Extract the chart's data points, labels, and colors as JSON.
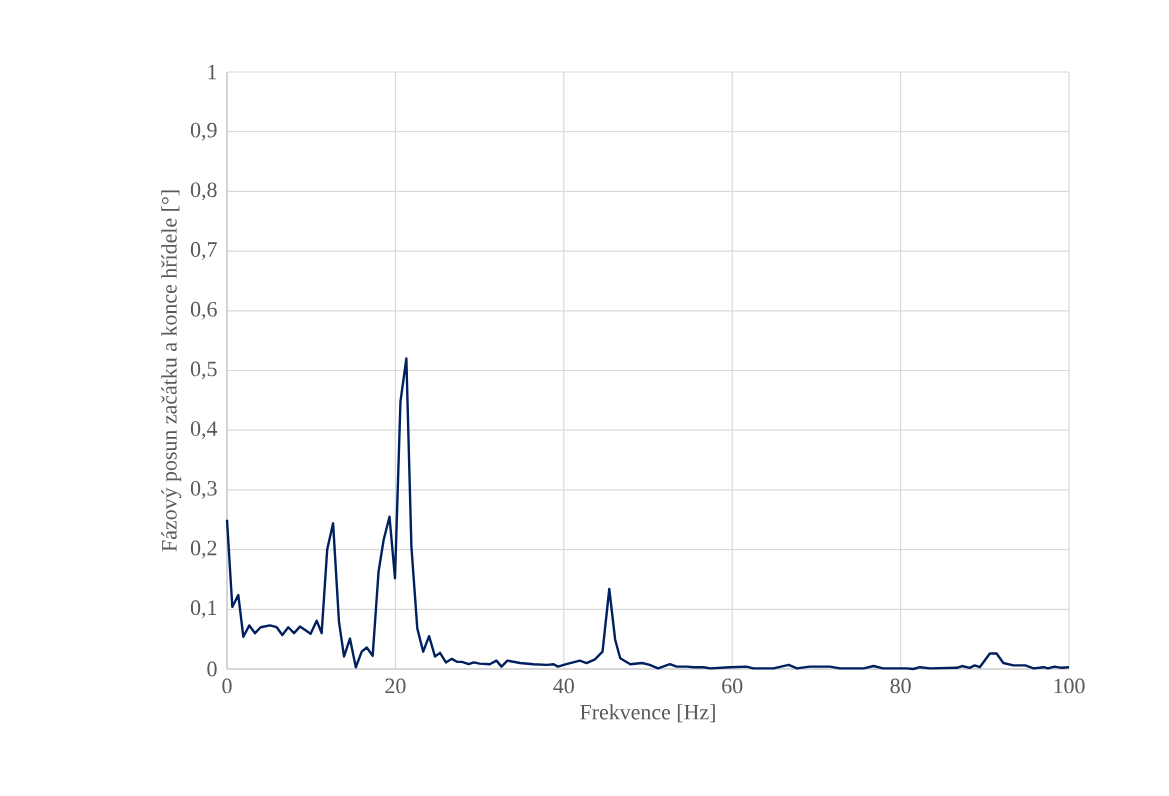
{
  "chart_data": {
    "type": "line",
    "xlabel": "Frekvence [Hz]",
    "ylabel": "Fázový posun začátku a konce hřídele [°]",
    "xlim": [
      0,
      100
    ],
    "ylim": [
      0,
      1
    ],
    "xticks": [
      0,
      20,
      40,
      60,
      80,
      100
    ],
    "yticks": [
      0,
      {
        "value": 0.1,
        "label": "0,1"
      },
      {
        "value": 0.2,
        "label": "0,2"
      },
      {
        "value": 0.3,
        "label": "0,3"
      },
      {
        "value": 0.4,
        "label": "0,4"
      },
      {
        "value": 0.5,
        "label": "0,5"
      },
      {
        "value": 0.6,
        "label": "0,6"
      },
      {
        "value": 0.7,
        "label": "0,7"
      },
      {
        "value": 0.8,
        "label": "0,8"
      },
      {
        "value": 0.9,
        "label": "0,9"
      },
      1
    ],
    "grid": true,
    "marker": "none",
    "line_style": "solid",
    "x": [
      0,
      0.63,
      1.34,
      1.94,
      2.65,
      3.33,
      4.0,
      5.1,
      5.9,
      6.57,
      7.28,
      7.96,
      8.67,
      9.93,
      10.65,
      11.24,
      11.9,
      12.6,
      13.3,
      13.9,
      14.6,
      15.3,
      16.0,
      16.6,
      17.3,
      18.0,
      18.6,
      19.3,
      19.95,
      20.6,
      21.3,
      21.9,
      22.6,
      23.3,
      24.0,
      24.7,
      25.3,
      26.0,
      26.7,
      27.3,
      27.9,
      28.7,
      29.3,
      30.0,
      31.2,
      32.0,
      32.6,
      33.3,
      34.8,
      36.4,
      38.0,
      38.8,
      39.3,
      40.3,
      41.9,
      42.7,
      43.7,
      44.6,
      45.4,
      46.1,
      46.7,
      47.9,
      49.3,
      50.2,
      51.2,
      52.6,
      53.4,
      54.6,
      55.4,
      56.6,
      57.4,
      59.7,
      61.7,
      62.5,
      64.9,
      66.7,
      67.7,
      69.2,
      71.6,
      72.8,
      75.6,
      76.8,
      77.9,
      80.7,
      81.5,
      82.3,
      83.5,
      86.7,
      87.3,
      88.2,
      88.8,
      89.4,
      90.6,
      91.4,
      92.2,
      93.4,
      94.8,
      95.8,
      97.0,
      97.5,
      98.3,
      99.1,
      100
    ],
    "series": [
      {
        "color": "#002060",
        "values": [
          0.25,
          0.104,
          0.124,
          0.054,
          0.073,
          0.06,
          0.07,
          0.073,
          0.07,
          0.057,
          0.07,
          0.06,
          0.071,
          0.059,
          0.081,
          0.06,
          0.2,
          0.244,
          0.079,
          0.021,
          0.051,
          0.003,
          0.029,
          0.036,
          0.022,
          0.163,
          0.216,
          0.255,
          0.152,
          0.448,
          0.52,
          0.205,
          0.068,
          0.029,
          0.055,
          0.021,
          0.027,
          0.011,
          0.017,
          0.012,
          0.012,
          0.008,
          0.011,
          0.009,
          0.008,
          0.014,
          0.004,
          0.014,
          0.01,
          0.008,
          0.007,
          0.008,
          0.004,
          0.008,
          0.014,
          0.01,
          0.016,
          0.029,
          0.134,
          0.049,
          0.018,
          0.008,
          0.01,
          0.007,
          0.001,
          0.008,
          0.004,
          0.004,
          0.003,
          0.003,
          0.001,
          0.003,
          0.004,
          0.001,
          0.001,
          0.007,
          0.001,
          0.004,
          0.004,
          0.001,
          0.001,
          0.005,
          0.001,
          0.001,
          0.0,
          0.003,
          0.001,
          0.002,
          0.005,
          0.002,
          0.006,
          0.003,
          0.026,
          0.026,
          0.01,
          0.006,
          0.006,
          0.001,
          0.003,
          0.001,
          0.004,
          0.002,
          0.003
        ]
      }
    ]
  }
}
